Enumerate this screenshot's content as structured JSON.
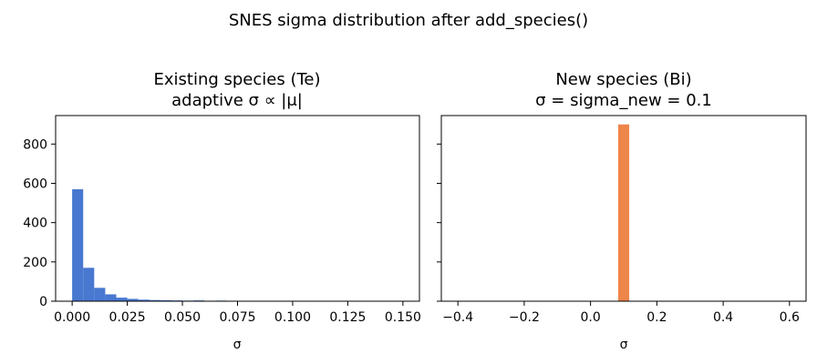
{
  "suptitle": "SNES sigma distribution after add_species()",
  "chart_data": [
    {
      "type": "bar",
      "title_line1": "Existing species (Te)",
      "title_line2": "adaptive σ ∝ |μ|",
      "xlabel": "σ",
      "ylabel": "",
      "xlim": [
        -0.0075,
        0.1575
      ],
      "ylim": [
        0,
        945
      ],
      "xticks": [
        0.0,
        0.025,
        0.05,
        0.075,
        0.1,
        0.125,
        0.15
      ],
      "xtick_labels": [
        "0.000",
        "0.025",
        "0.050",
        "0.075",
        "0.100",
        "0.125",
        "0.150"
      ],
      "yticks": [
        0,
        200,
        400,
        600,
        800
      ],
      "ytick_labels": [
        "0",
        "200",
        "400",
        "600",
        "800"
      ],
      "grid": false,
      "color": "#4878d0",
      "bin_width": 0.005,
      "bin_starts": [
        0.0,
        0.005,
        0.01,
        0.015,
        0.02,
        0.025,
        0.03,
        0.035,
        0.04,
        0.045,
        0.05,
        0.055,
        0.06,
        0.065,
        0.07
      ],
      "values": [
        570,
        170,
        68,
        35,
        18,
        12,
        8,
        6,
        5,
        4,
        3,
        4,
        2,
        3,
        1
      ]
    },
    {
      "type": "bar",
      "title_line1": "New species (Bi)",
      "title_line2": "σ = sigma_new = 0.1",
      "xlabel": "σ",
      "ylabel": "",
      "xlim": [
        -0.45,
        0.65
      ],
      "ylim": [
        0,
        945
      ],
      "xticks": [
        -0.4,
        -0.2,
        0.0,
        0.2,
        0.4,
        0.6
      ],
      "xtick_labels": [
        "−0.4",
        "−0.2",
        "0.0",
        "0.2",
        "0.4",
        "0.6"
      ],
      "yticks": [
        0,
        200,
        400,
        600,
        800
      ],
      "ytick_labels": [],
      "grid": false,
      "color": "#ee854a",
      "bin_width": 0.0333,
      "bin_starts": [
        0.0833
      ],
      "values": [
        900
      ]
    }
  ]
}
